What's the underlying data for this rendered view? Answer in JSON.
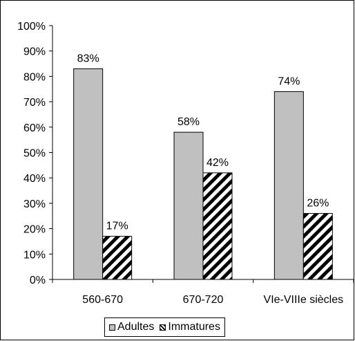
{
  "chart_data": {
    "type": "bar",
    "categories": [
      "560-670",
      "670-720",
      "VIe-VIIIe siècles"
    ],
    "series": [
      {
        "name": "Adultes",
        "values": [
          83,
          58,
          74
        ],
        "labels": [
          "83%",
          "58%",
          "74%"
        ],
        "fill": "#c0c0c0",
        "pattern": "solid"
      },
      {
        "name": "Immatures",
        "values": [
          17,
          42,
          26
        ],
        "labels": [
          "17%",
          "42%",
          "26%"
        ],
        "fill": "#ffffff",
        "pattern": "diagonal-hatch"
      }
    ],
    "ylim": [
      0,
      100
    ],
    "yticks": [
      "0%",
      "10%",
      "20%",
      "30%",
      "40%",
      "50%",
      "60%",
      "70%",
      "80%",
      "90%",
      "100%"
    ],
    "grid": false,
    "legend_position": "bottom",
    "colors": {
      "axis": "#000000",
      "bar_stroke": "#000000",
      "hatch": "#000000"
    }
  }
}
